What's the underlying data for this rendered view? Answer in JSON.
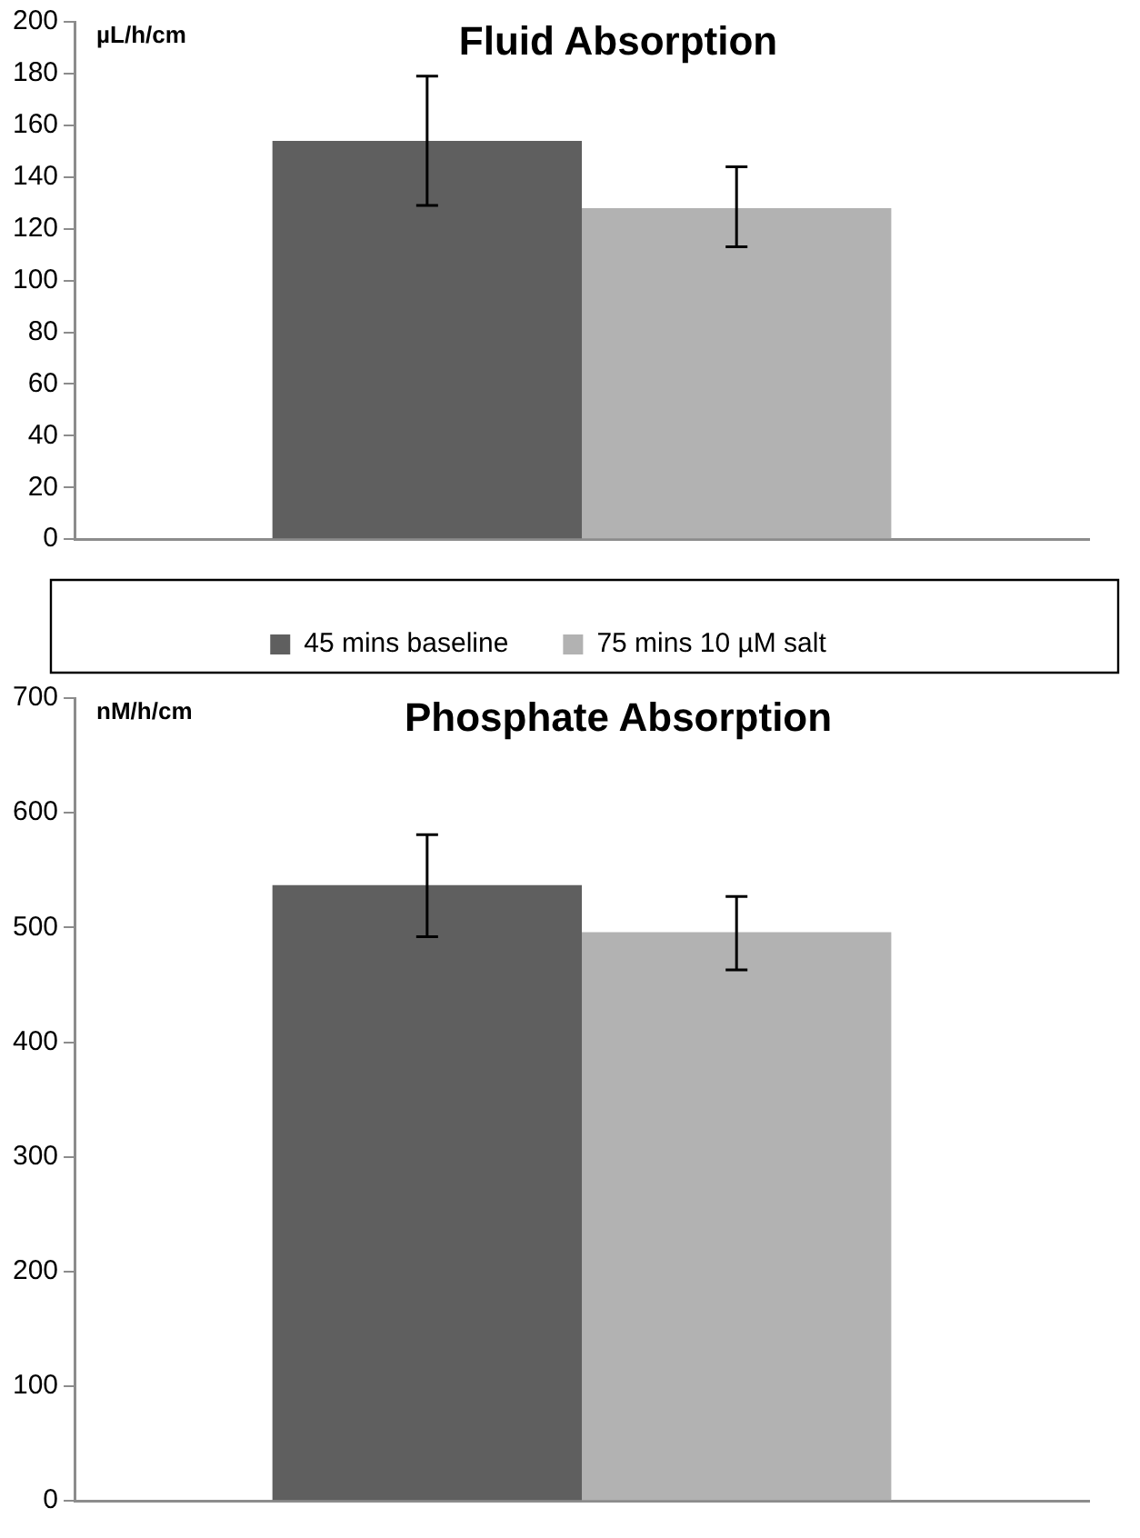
{
  "chart_data": [
    {
      "type": "bar",
      "title": "Fluid Absorption",
      "ylabel": "µL/h/cm",
      "categories": [
        null
      ],
      "series": [
        {
          "name": "45 mins baseline",
          "color": "#5f5f5f",
          "values": [
            154
          ],
          "errors": [
            [
              129,
              179
            ]
          ]
        },
        {
          "name": "75 mins 10 µM salt",
          "color": "#b2b2b2",
          "values": [
            128
          ],
          "errors": [
            [
              113,
              144
            ]
          ]
        }
      ],
      "ylim": [
        0,
        200
      ],
      "yticks": [
        0,
        20,
        40,
        60,
        80,
        100,
        120,
        140,
        160,
        180,
        200
      ],
      "grid": false,
      "legend": "bottom"
    },
    {
      "type": "bar",
      "title": "Phosphate Absorption",
      "ylabel": "nM/h/cm",
      "categories": [
        null
      ],
      "series": [
        {
          "color": "#5f5f5f",
          "values": [
            537
          ],
          "errors": [
            [
              492,
              581
            ]
          ]
        },
        {
          "color": "#b2b2b2",
          "values": [
            496
          ],
          "errors": [
            [
              463,
              527
            ]
          ]
        }
      ],
      "ylim": [
        0,
        700
      ],
      "yticks": [
        0,
        100,
        200,
        300,
        400,
        500,
        600,
        700
      ],
      "grid": false
    }
  ]
}
